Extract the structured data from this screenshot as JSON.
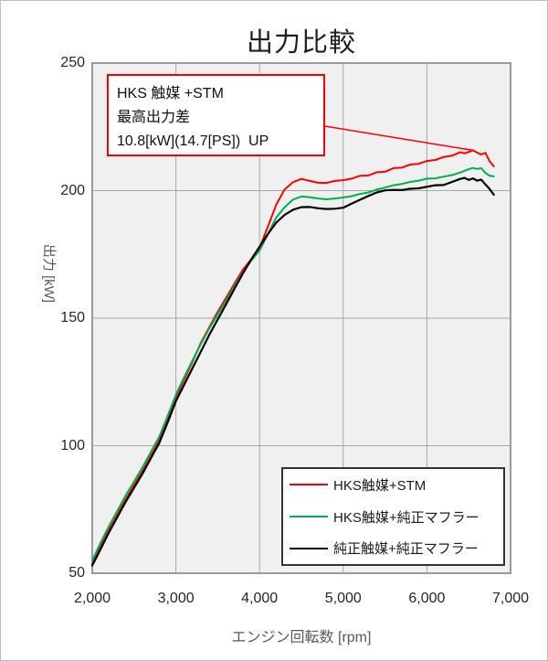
{
  "title": "出力比較",
  "colors": {
    "series_red": "#ff0000",
    "series_green": "#00b050",
    "series_black": "#000000",
    "plot_background": "#f0f0f0",
    "gridline": "#a6a6a6",
    "plot_border": "#9a9a9a",
    "annotation_border": "#ff0000",
    "axis_title_text": "#595959",
    "tick_text": "#262626"
  },
  "chart_data": {
    "type": "line",
    "title": "出力比較",
    "xlabel": "エンジン回転数 [rpm]",
    "ylabel": "出力 [kW]",
    "xlim": [
      2000,
      7000
    ],
    "ylim": [
      50,
      250
    ],
    "grid": true,
    "x_ticks": [
      2000,
      3000,
      4000,
      5000,
      6000,
      7000
    ],
    "x_tick_labels": [
      "2,000",
      "3,000",
      "4,000",
      "5,000",
      "6,000",
      "7,000"
    ],
    "y_ticks": [
      50,
      100,
      150,
      200,
      250
    ],
    "y_tick_labels": [
      "50",
      "100",
      "150",
      "200",
      "250"
    ],
    "legend_position": "inside-bottom-right",
    "annotation": {
      "lines": [
        "HKS 触媒 +STM",
        "最高出力差",
        "10.8[kW](14.7[PS])  UP"
      ],
      "points_to": {
        "rpm": 6550,
        "kw": 215.8
      }
    },
    "series": [
      {
        "name": "HKS触媒+STM",
        "color": "#ff0000",
        "points": [
          [
            2000,
            53.5
          ],
          [
            2100,
            60.5
          ],
          [
            2200,
            67
          ],
          [
            2300,
            73
          ],
          [
            2400,
            79
          ],
          [
            2500,
            84.5
          ],
          [
            2600,
            90
          ],
          [
            2700,
            96
          ],
          [
            2800,
            102
          ],
          [
            2900,
            110
          ],
          [
            3000,
            119
          ],
          [
            3100,
            126
          ],
          [
            3200,
            133
          ],
          [
            3300,
            140.5
          ],
          [
            3400,
            146.5
          ],
          [
            3500,
            152.5
          ],
          [
            3600,
            158
          ],
          [
            3700,
            163.5
          ],
          [
            3800,
            169
          ],
          [
            3900,
            173
          ],
          [
            4000,
            177.5
          ],
          [
            4100,
            186
          ],
          [
            4200,
            194.5
          ],
          [
            4300,
            200.5
          ],
          [
            4400,
            203.3
          ],
          [
            4500,
            204.6
          ],
          [
            4550,
            204.2
          ],
          [
            4600,
            203.8
          ],
          [
            4700,
            203.1
          ],
          [
            4800,
            203.0
          ],
          [
            4900,
            203.8
          ],
          [
            5000,
            204.1
          ],
          [
            5100,
            204.7
          ],
          [
            5200,
            205.8
          ],
          [
            5300,
            205.9
          ],
          [
            5400,
            207.2
          ],
          [
            5500,
            207.4
          ],
          [
            5600,
            208.8
          ],
          [
            5700,
            209.0
          ],
          [
            5800,
            210.2
          ],
          [
            5900,
            210.5
          ],
          [
            6000,
            211.6
          ],
          [
            6100,
            212.0
          ],
          [
            6200,
            213.2
          ],
          [
            6300,
            213.7
          ],
          [
            6400,
            215.1
          ],
          [
            6450,
            214.6
          ],
          [
            6550,
            215.8
          ],
          [
            6600,
            214.9
          ],
          [
            6650,
            214.2
          ],
          [
            6700,
            214.8
          ],
          [
            6750,
            211.5
          ],
          [
            6800,
            209.5
          ]
        ]
      },
      {
        "name": "HKS触媒+純正マフラー",
        "color": "#00b050",
        "points": [
          [
            2000,
            55
          ],
          [
            2100,
            62
          ],
          [
            2200,
            68.5
          ],
          [
            2300,
            74.5
          ],
          [
            2400,
            80.5
          ],
          [
            2500,
            86
          ],
          [
            2600,
            91.5
          ],
          [
            2700,
            97.5
          ],
          [
            2800,
            103.5
          ],
          [
            2900,
            111.5
          ],
          [
            3000,
            120
          ],
          [
            3100,
            127
          ],
          [
            3200,
            133.5
          ],
          [
            3300,
            140
          ],
          [
            3400,
            146
          ],
          [
            3500,
            151.5
          ],
          [
            3600,
            157
          ],
          [
            3700,
            162.5
          ],
          [
            3800,
            168
          ],
          [
            3900,
            172.5
          ],
          [
            4000,
            176.5
          ],
          [
            4100,
            183
          ],
          [
            4200,
            189.5
          ],
          [
            4300,
            193.5
          ],
          [
            4400,
            196.5
          ],
          [
            4500,
            197.7
          ],
          [
            4600,
            197.4
          ],
          [
            4700,
            196.9
          ],
          [
            4800,
            196.6
          ],
          [
            4900,
            196.9
          ],
          [
            5000,
            197.3
          ],
          [
            5100,
            197.8
          ],
          [
            5200,
            198.7
          ],
          [
            5300,
            199.3
          ],
          [
            5400,
            200.4
          ],
          [
            5500,
            201.2
          ],
          [
            5600,
            202.1
          ],
          [
            5700,
            202.6
          ],
          [
            5800,
            203.4
          ],
          [
            5900,
            203.9
          ],
          [
            6000,
            204.7
          ],
          [
            6100,
            204.8
          ],
          [
            6200,
            205.5
          ],
          [
            6300,
            206.1
          ],
          [
            6400,
            207.1
          ],
          [
            6500,
            208.4
          ],
          [
            6550,
            208.9
          ],
          [
            6600,
            208.5
          ],
          [
            6650,
            208.8
          ],
          [
            6700,
            206.9
          ],
          [
            6750,
            205.8
          ],
          [
            6800,
            205.6
          ]
        ]
      },
      {
        "name": "純正触媒+純正マフラー",
        "color": "#000000",
        "points": [
          [
            2000,
            53
          ],
          [
            2100,
            59.5
          ],
          [
            2200,
            66
          ],
          [
            2300,
            72
          ],
          [
            2400,
            78
          ],
          [
            2500,
            83.5
          ],
          [
            2600,
            89
          ],
          [
            2700,
            95
          ],
          [
            2800,
            101
          ],
          [
            2900,
            109
          ],
          [
            3000,
            117.5
          ],
          [
            3100,
            124
          ],
          [
            3200,
            130.5
          ],
          [
            3300,
            137
          ],
          [
            3400,
            143.5
          ],
          [
            3500,
            149.5
          ],
          [
            3600,
            155.5
          ],
          [
            3700,
            161.5
          ],
          [
            3800,
            167.5
          ],
          [
            3900,
            173
          ],
          [
            4000,
            178
          ],
          [
            4100,
            183
          ],
          [
            4200,
            187.5
          ],
          [
            4300,
            190.5
          ],
          [
            4400,
            192.5
          ],
          [
            4500,
            193.5
          ],
          [
            4600,
            193.6
          ],
          [
            4700,
            193.1
          ],
          [
            4800,
            192.8
          ],
          [
            4900,
            192.9
          ],
          [
            5000,
            193.3
          ],
          [
            5100,
            194.9
          ],
          [
            5200,
            196.4
          ],
          [
            5300,
            197.9
          ],
          [
            5400,
            199.3
          ],
          [
            5500,
            200.1
          ],
          [
            5600,
            200.3
          ],
          [
            5700,
            200.2
          ],
          [
            5800,
            200.7
          ],
          [
            5900,
            200.9
          ],
          [
            6000,
            201.5
          ],
          [
            6100,
            202.1
          ],
          [
            6200,
            202.2
          ],
          [
            6300,
            203.4
          ],
          [
            6400,
            204.6
          ],
          [
            6450,
            205.0
          ],
          [
            6500,
            204.2
          ],
          [
            6550,
            204.8
          ],
          [
            6600,
            203.9
          ],
          [
            6650,
            204.3
          ],
          [
            6700,
            202.4
          ],
          [
            6750,
            200.6
          ],
          [
            6800,
            198.4
          ]
        ]
      }
    ]
  }
}
